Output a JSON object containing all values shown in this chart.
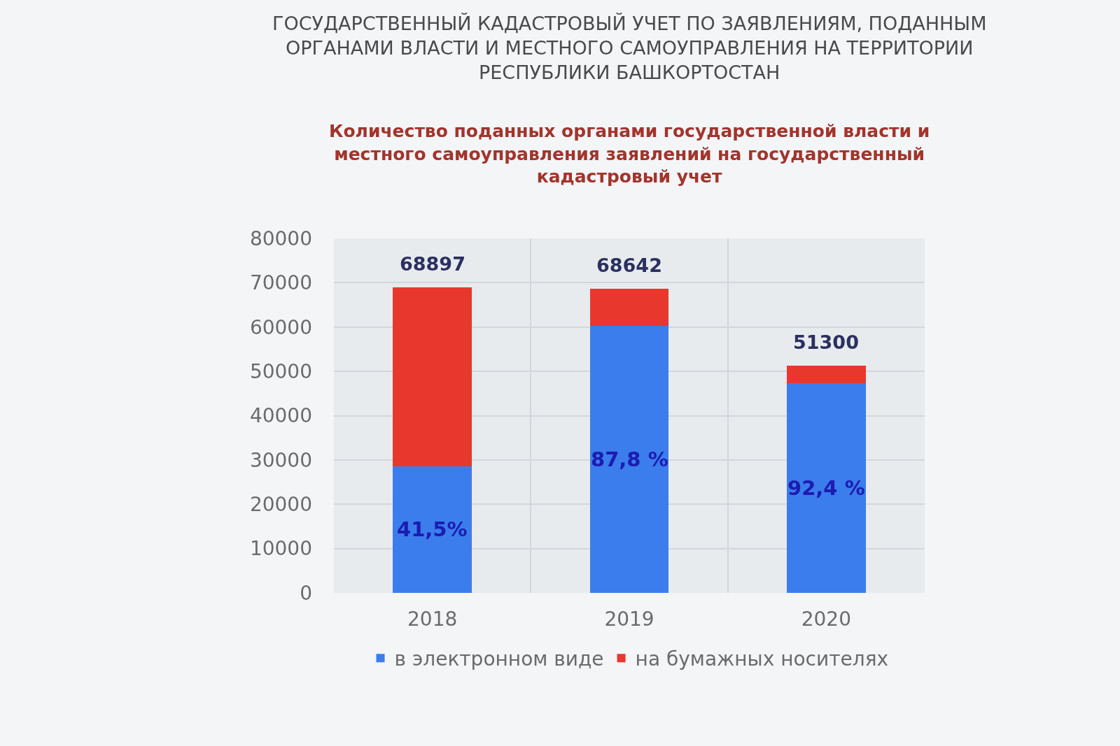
{
  "chart_data": {
    "type": "bar",
    "stacked": true,
    "title": "ГОСУДАРСТВЕННЫЙ КАДАСТРОВЫЙ УЧЕТ ПО ЗАЯВЛЕНИЯМ, ПОДАННЫМ ОРГАНАМИ ВЛАСТИ И МЕСТНОГО САМОУПРАВЛЕНИЯ НА ТЕРРИТОРИИ РЕСПУБЛИКИ БАШКОРТОСТАН",
    "subtitle": "Количество поданных органами государственной власти и местного самоуправления заявлений на государственный кадастровый учет",
    "categories": [
      "2018",
      "2019",
      "2020"
    ],
    "series": [
      {
        "name": "в электронном виде",
        "color": "#3b7ded",
        "values": [
          28592,
          60268,
          47401
        ]
      },
      {
        "name": "на бумажных носителях",
        "color": "#e8382e",
        "values": [
          40305,
          8374,
          3899
        ]
      }
    ],
    "totals": [
      "68897",
      "68642",
      "51300"
    ],
    "annotations": [
      "41,5%",
      "87,8 %",
      "92,4 %"
    ],
    "ylim": [
      0,
      80000
    ],
    "yticks": [
      0,
      10000,
      20000,
      30000,
      40000,
      50000,
      60000,
      70000,
      80000
    ],
    "grid": true,
    "legend": "bottom"
  }
}
